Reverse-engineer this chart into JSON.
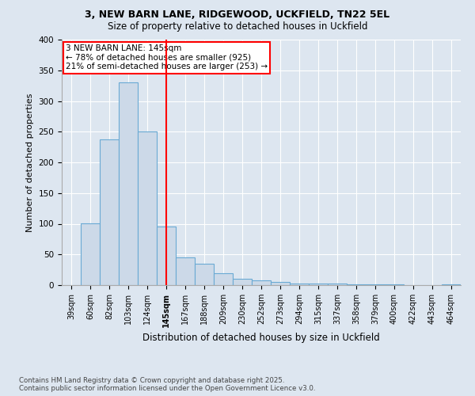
{
  "title1": "3, NEW BARN LANE, RIDGEWOOD, UCKFIELD, TN22 5EL",
  "title2": "Size of property relative to detached houses in Uckfield",
  "xlabel": "Distribution of detached houses by size in Uckfield",
  "ylabel": "Number of detached properties",
  "categories": [
    "39sqm",
    "60sqm",
    "82sqm",
    "103sqm",
    "124sqm",
    "145sqm",
    "167sqm",
    "188sqm",
    "209sqm",
    "230sqm",
    "252sqm",
    "273sqm",
    "294sqm",
    "315sqm",
    "337sqm",
    "358sqm",
    "379sqm",
    "400sqm",
    "422sqm",
    "443sqm",
    "464sqm"
  ],
  "values": [
    0,
    101,
    238,
    330,
    250,
    95,
    45,
    35,
    20,
    10,
    8,
    5,
    3,
    2,
    2,
    1,
    1,
    1,
    0,
    0,
    1
  ],
  "bar_color": "#ccd9e8",
  "bar_edge_color": "#6aaad4",
  "marker_index": 5,
  "vline_color": "red",
  "annotation_text": "3 NEW BARN LANE: 145sqm\n← 78% of detached houses are smaller (925)\n21% of semi-detached houses are larger (253) →",
  "annotation_box_color": "white",
  "annotation_box_edge_color": "red",
  "footer": "Contains HM Land Registry data © Crown copyright and database right 2025.\nContains public sector information licensed under the Open Government Licence v3.0.",
  "ylim": [
    0,
    400
  ],
  "yticks": [
    0,
    50,
    100,
    150,
    200,
    250,
    300,
    350,
    400
  ],
  "background_color": "#dde6f0",
  "plot_background": "#dde6f0"
}
